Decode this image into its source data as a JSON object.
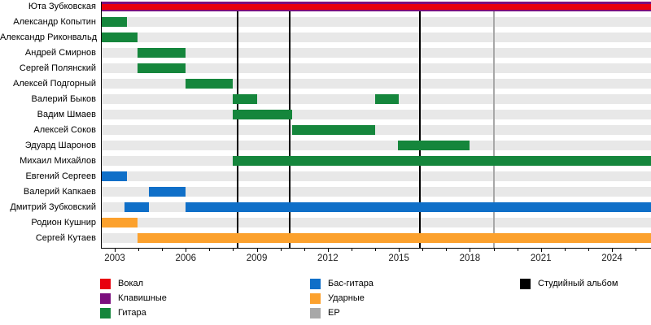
{
  "chart_data": {
    "type": "gantt-timeline",
    "title": "",
    "axis": {
      "min": 2002.45,
      "max": 2025.65,
      "tick_start": 2003,
      "tick_end": 2025,
      "minor_tick_step": 1,
      "major_tick_step": 3,
      "major_tick_labels": [
        "2003",
        "2006",
        "2009",
        "2012",
        "2015",
        "2018",
        "2021",
        "2024"
      ]
    },
    "roles": {
      "vocals": {
        "label": "Вокал",
        "color": "#e8000d"
      },
      "keyboards": {
        "label": "Клавишные",
        "color": "#7b0e7e"
      },
      "guitar": {
        "label": "Гитара",
        "color": "#15863c"
      },
      "bass": {
        "label": "Бас-гитара",
        "color": "#0f6fc8"
      },
      "drums": {
        "label": "Ударные",
        "color": "#fca12d"
      },
      "album": {
        "label": "Студийный альбом",
        "color": "#000000"
      },
      "ep": {
        "label": "EP",
        "color": "#a8a8a8"
      }
    },
    "row_track_color": "#e8e8e8",
    "members": [
      {
        "name": "Юта Зубковская",
        "segments": [
          {
            "role": "keyboards",
            "start": 2002.45,
            "end": 2025.65
          },
          {
            "role": "vocals",
            "start": 2002.45,
            "end": 2025.65,
            "overlay": true
          }
        ]
      },
      {
        "name": "Александр Копытин",
        "segments": [
          {
            "role": "guitar",
            "start": 2002.45,
            "end": 2003.5
          }
        ]
      },
      {
        "name": "Александр Риконвальд",
        "segments": [
          {
            "role": "guitar",
            "start": 2002.45,
            "end": 2003.95
          }
        ]
      },
      {
        "name": "Андрей Смирнов",
        "segments": [
          {
            "role": "guitar",
            "start": 2003.95,
            "end": 2006.0
          }
        ]
      },
      {
        "name": "Сергей Полянский",
        "segments": [
          {
            "role": "guitar",
            "start": 2003.95,
            "end": 2006.0
          }
        ]
      },
      {
        "name": "Алексей Подгорный",
        "segments": [
          {
            "role": "guitar",
            "start": 2006.0,
            "end": 2008.0
          }
        ]
      },
      {
        "name": "Валерий Быков",
        "segments": [
          {
            "role": "guitar",
            "start": 2008.0,
            "end": 2009.0
          },
          {
            "role": "guitar",
            "start": 2014.0,
            "end": 2015.0
          }
        ]
      },
      {
        "name": "Вадим Шмаев",
        "segments": [
          {
            "role": "guitar",
            "start": 2008.0,
            "end": 2010.5
          }
        ]
      },
      {
        "name": "Алексей Соков",
        "segments": [
          {
            "role": "guitar",
            "start": 2010.5,
            "end": 2014.0
          }
        ]
      },
      {
        "name": "Эдуард Шаронов",
        "segments": [
          {
            "role": "guitar",
            "start": 2014.95,
            "end": 2018.0
          }
        ]
      },
      {
        "name": "Михаил Михайлов",
        "segments": [
          {
            "role": "guitar",
            "start": 2008.0,
            "end": 2025.65
          }
        ]
      },
      {
        "name": "Евгений Сергеев",
        "segments": [
          {
            "role": "bass",
            "start": 2002.45,
            "end": 2003.5
          }
        ]
      },
      {
        "name": "Валерий Капкаев",
        "segments": [
          {
            "role": "bass",
            "start": 2004.45,
            "end": 2006.0
          }
        ]
      },
      {
        "name": "Дмитрий Зубковский",
        "segments": [
          {
            "role": "bass",
            "start": 2003.4,
            "end": 2004.45
          },
          {
            "role": "bass",
            "start": 2006.0,
            "end": 2025.65
          }
        ]
      },
      {
        "name": "Родион Кушнир",
        "segments": [
          {
            "role": "drums",
            "start": 2002.45,
            "end": 2003.95
          }
        ]
      },
      {
        "name": "Сергей Кутаев",
        "segments": [
          {
            "role": "drums",
            "start": 2003.95,
            "end": 2025.65
          }
        ]
      }
    ],
    "events": [
      {
        "role": "album",
        "year": 2008.2
      },
      {
        "role": "album",
        "year": 2010.4
      },
      {
        "role": "album",
        "year": 2015.9
      },
      {
        "role": "ep",
        "year": 2019.0
      }
    ],
    "legend_columns": [
      [
        "vocals",
        "keyboards",
        "guitar"
      ],
      [
        "bass",
        "drums",
        "ep"
      ],
      [
        "album"
      ]
    ],
    "legend_position": "bottom"
  }
}
